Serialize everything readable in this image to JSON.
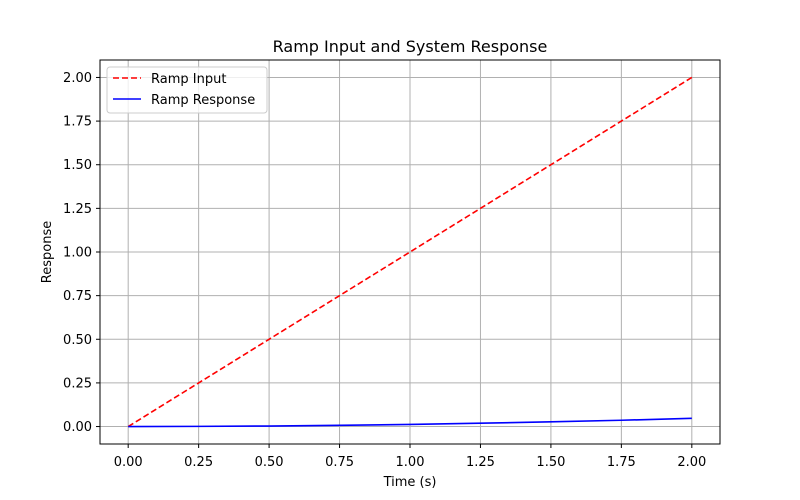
{
  "chart_data": {
    "type": "line",
    "title": "Ramp Input and System Response",
    "xlabel": "Time (s)",
    "ylabel": "Response",
    "xlim": [
      -0.1,
      2.1
    ],
    "ylim": [
      -0.1,
      2.1
    ],
    "x_ticks": [
      "0.00",
      "0.25",
      "0.50",
      "0.75",
      "1.00",
      "1.25",
      "1.50",
      "1.75",
      "2.00"
    ],
    "y_ticks": [
      "0.00",
      "0.25",
      "0.50",
      "0.75",
      "1.00",
      "1.25",
      "1.50",
      "1.75",
      "2.00"
    ],
    "grid": true,
    "legend_position": "top-left",
    "series": [
      {
        "name": "Ramp Input",
        "color": "#ff0000",
        "line_style": "dashed",
        "x": [
          0.0,
          0.25,
          0.5,
          0.75,
          1.0,
          1.25,
          1.5,
          1.75,
          2.0
        ],
        "y": [
          0.0,
          0.25,
          0.5,
          0.75,
          1.0,
          1.25,
          1.5,
          1.75,
          2.0
        ]
      },
      {
        "name": "Ramp Response",
        "color": "#0000ff",
        "line_style": "solid",
        "x": [
          0.0,
          0.25,
          0.5,
          0.75,
          1.0,
          1.25,
          1.5,
          1.75,
          2.0
        ],
        "y": [
          0.0,
          0.001,
          0.003,
          0.007,
          0.012,
          0.019,
          0.027,
          0.036,
          0.047
        ]
      }
    ]
  }
}
